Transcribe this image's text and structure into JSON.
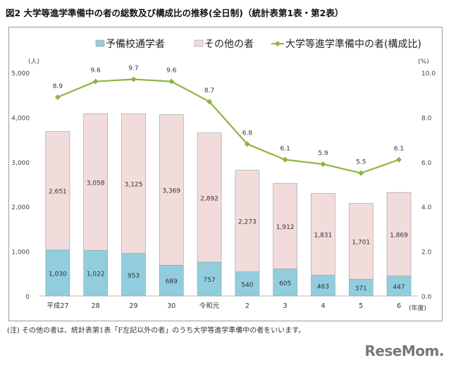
{
  "title": "図2 大学等進学準備中の者の総数及び構成比の推移(全日制)（統計表第1表・第2表）",
  "note": "(注) その他の者は、統計表第1表「F左記以外の者」のうち大学等進学準備中の者をいいます。",
  "logo": "ReseMom",
  "chart_data": {
    "type": "bar",
    "stacked": true,
    "categories": [
      "平成27",
      "28",
      "29",
      "30",
      "令和元",
      "2",
      "3",
      "4",
      "5",
      "6"
    ],
    "xlabel_unit": "(年度)",
    "ylabel_left": "(人)",
    "ylabel_right": "(%)",
    "ylim_left": [
      0,
      5000
    ],
    "yticks_left": [
      "0",
      "1,000",
      "2,000",
      "3,000",
      "4,000",
      "5,000"
    ],
    "ylim_right": [
      0,
      10
    ],
    "yticks_right": [
      "0.0",
      "2.0",
      "4.0",
      "6.0",
      "8.0",
      "10.0"
    ],
    "legend_position": "top",
    "series": [
      {
        "name": "予備校通学者",
        "type": "bar",
        "color": "#92cddd",
        "values": [
          1030,
          1022,
          953,
          689,
          757,
          540,
          605,
          463,
          371,
          447
        ],
        "labels": [
          "1,030",
          "1,022",
          "953",
          "689",
          "757",
          "540",
          "605",
          "463",
          "371",
          "447"
        ]
      },
      {
        "name": "その他の者",
        "type": "bar",
        "color": "#f2dcdb",
        "values": [
          2651,
          3058,
          3125,
          3369,
          2892,
          2273,
          1912,
          1831,
          1701,
          1869
        ],
        "labels": [
          "2,651",
          "3,058",
          "3,125",
          "3,369",
          "2,892",
          "2,273",
          "1,912",
          "1,831",
          "1,701",
          "1,869"
        ]
      },
      {
        "name": "大学等進学準備中の者(構成比)",
        "type": "line",
        "axis": "right",
        "color": "#8db53e",
        "values": [
          8.9,
          9.6,
          9.7,
          9.6,
          8.7,
          6.8,
          6.1,
          5.9,
          5.5,
          6.1
        ],
        "labels": [
          "8.9",
          "9.6",
          "9.7",
          "9.6",
          "8.7",
          "6.8",
          "6.1",
          "5.9",
          "5.5",
          "6.1"
        ]
      }
    ]
  }
}
